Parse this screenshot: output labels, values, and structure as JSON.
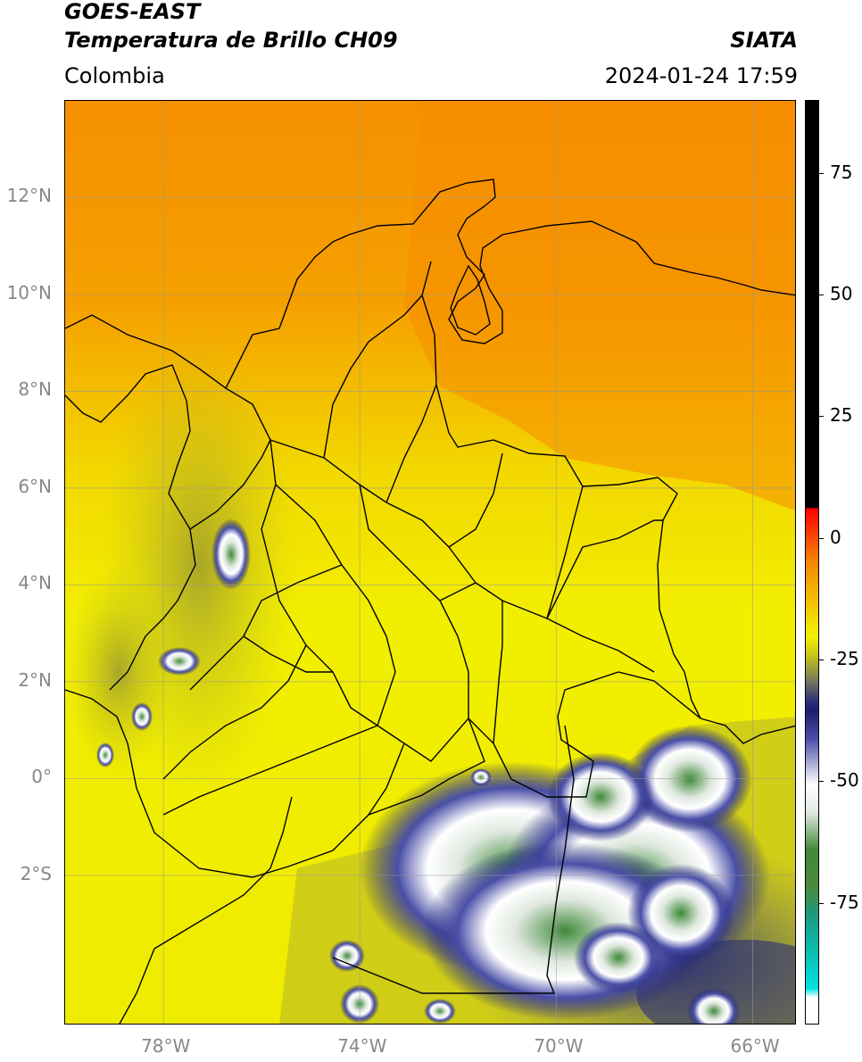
{
  "header": {
    "title_line1": "GOES-EAST",
    "title_line2": "Temperatura de Brillo CH09",
    "region": "Colombia",
    "source": "SIATA",
    "timestamp": "2024-01-24 17:59"
  },
  "map": {
    "lon_range": [
      -80,
      -65.1
    ],
    "lat_range": [
      -5.1,
      14
    ],
    "lat_ticks": [
      {
        "value": 12,
        "label": "12°N"
      },
      {
        "value": 10,
        "label": "10°N"
      },
      {
        "value": 8,
        "label": "8°N"
      },
      {
        "value": 6,
        "label": "6°N"
      },
      {
        "value": 4,
        "label": "4°N"
      },
      {
        "value": 2,
        "label": "2°N"
      },
      {
        "value": 0,
        "label": "0°"
      },
      {
        "value": -2,
        "label": "2°S"
      }
    ],
    "lon_ticks": [
      {
        "value": -78,
        "label": "78°W"
      },
      {
        "value": -74,
        "label": "74°W"
      },
      {
        "value": -70,
        "label": "70°W"
      },
      {
        "value": -66,
        "label": "66°W"
      }
    ],
    "gridlines": true,
    "colors": {
      "background_yellow": "#f2f000",
      "orange": "#f59a00",
      "deep_orange": "#f58c00",
      "olive": "#b6b42a",
      "navy": "#1c1f6e",
      "white_cloud": "#ffffff",
      "green_cloud": "#3f8a3a",
      "border": "#000000",
      "grid": "#999999"
    }
  },
  "colorbar": {
    "unit_note": "",
    "ticks": [
      {
        "value": 75,
        "label": "75"
      },
      {
        "value": 50,
        "label": "50"
      },
      {
        "value": 25,
        "label": "25"
      },
      {
        "value": 0,
        "label": "0"
      },
      {
        "value": -25,
        "label": "-25"
      },
      {
        "value": -50,
        "label": "-50"
      },
      {
        "value": -75,
        "label": "-75"
      }
    ],
    "range": [
      -100,
      90
    ]
  }
}
